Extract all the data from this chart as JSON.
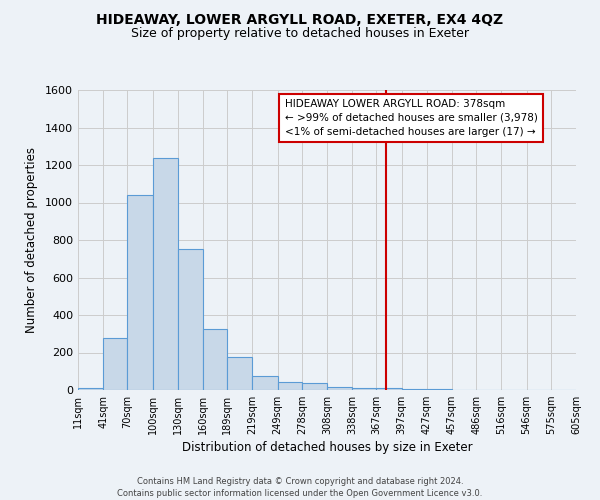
{
  "title": "HIDEAWAY, LOWER ARGYLL ROAD, EXETER, EX4 4QZ",
  "subtitle": "Size of property relative to detached houses in Exeter",
  "xlabel": "Distribution of detached houses by size in Exeter",
  "ylabel": "Number of detached properties",
  "bar_color": "#c8d8e8",
  "bar_edge_color": "#5b9bd5",
  "bin_labels": [
    "11sqm",
    "41sqm",
    "70sqm",
    "100sqm",
    "130sqm",
    "160sqm",
    "189sqm",
    "219sqm",
    "249sqm",
    "278sqm",
    "308sqm",
    "338sqm",
    "367sqm",
    "397sqm",
    "427sqm",
    "457sqm",
    "486sqm",
    "516sqm",
    "546sqm",
    "575sqm",
    "605sqm"
  ],
  "bin_edges": [
    11,
    41,
    70,
    100,
    130,
    160,
    189,
    219,
    249,
    278,
    308,
    338,
    367,
    397,
    427,
    457,
    486,
    516,
    546,
    575,
    605
  ],
  "bar_heights": [
    10,
    275,
    1040,
    1240,
    750,
    325,
    175,
    75,
    45,
    35,
    15,
    10,
    10,
    5,
    5,
    2,
    2,
    1,
    1,
    1
  ],
  "vline_x": 378,
  "vline_color": "#cc0000",
  "annotation_line1": "HIDEAWAY LOWER ARGYLL ROAD: 378sqm",
  "annotation_line2": "← >99% of detached houses are smaller (3,978)",
  "annotation_line3": "<1% of semi-detached houses are larger (17) →",
  "annotation_box_color": "#ffffff",
  "annotation_box_edge": "#cc0000",
  "ylim": [
    0,
    1600
  ],
  "yticks": [
    0,
    200,
    400,
    600,
    800,
    1000,
    1200,
    1400,
    1600
  ],
  "grid_color": "#cccccc",
  "background_color": "#edf2f7",
  "footer_line1": "Contains HM Land Registry data © Crown copyright and database right 2024.",
  "footer_line2": "Contains public sector information licensed under the Open Government Licence v3.0.",
  "title_fontsize": 10,
  "subtitle_fontsize": 9,
  "ylabel_text": "Number of detached properties"
}
